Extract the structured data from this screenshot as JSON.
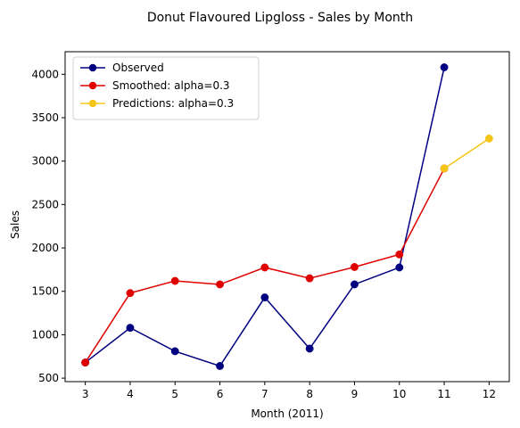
{
  "chart_data": {
    "type": "line",
    "title": "Donut Flavoured Lipgloss - Sales by Month",
    "xlabel": "Month (2011)",
    "ylabel": "Sales",
    "xlim": [
      2.55,
      12.45
    ],
    "ylim": [
      460,
      4260
    ],
    "xticks": [
      3,
      4,
      5,
      6,
      7,
      8,
      9,
      10,
      11,
      12
    ],
    "yticks": [
      500,
      1000,
      1500,
      2000,
      2500,
      3000,
      3500,
      4000
    ],
    "grid": false,
    "legend_position": "top-left",
    "series": [
      {
        "name": "Observed",
        "color": "#000080",
        "x": [
          3,
          4,
          5,
          6,
          7,
          8,
          9,
          10,
          11
        ],
        "y": [
          680,
          1080,
          810,
          640,
          1430,
          840,
          1580,
          1775,
          4080
        ]
      },
      {
        "name": "Smoothed: alpha=0.3",
        "color": "#e00000",
        "x": [
          3,
          4,
          5,
          6,
          7,
          8,
          9,
          10,
          11
        ],
        "y": [
          680,
          1480,
          1620,
          1580,
          1775,
          1650,
          1780,
          1925,
          2915
        ]
      },
      {
        "name": "Predictions: alpha=0.3",
        "color": "#f5c518",
        "x": [
          11,
          12
        ],
        "y": [
          2915,
          3260
        ]
      }
    ]
  }
}
